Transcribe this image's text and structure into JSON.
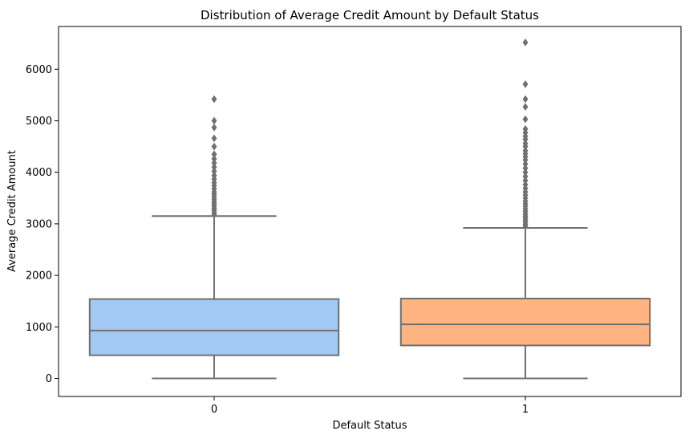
{
  "chart_data": {
    "type": "box",
    "title": "Distribution of Average Credit Amount by Default Status",
    "xlabel": "Default Status",
    "ylabel": "Average Credit Amount",
    "ylim": [
      -350,
      6830
    ],
    "yticks": [
      0,
      1000,
      2000,
      3000,
      4000,
      5000,
      6000
    ],
    "grid": false,
    "legend": "none",
    "categories": [
      "0",
      "1"
    ],
    "boxes": [
      {
        "category": "0",
        "color": "#a1c9f4",
        "whisker_low": 0,
        "q1": 450,
        "median": 930,
        "q3": 1540,
        "whisker_high": 3150,
        "outliers": [
          3180,
          3220,
          3260,
          3300,
          3340,
          3380,
          3420,
          3470,
          3520,
          3570,
          3620,
          3680,
          3740,
          3800,
          3870,
          3940,
          4020,
          4100,
          4180,
          4260,
          4350,
          4500,
          4660,
          4870,
          5000,
          5420
        ]
      },
      {
        "category": "1",
        "color": "#ffb482",
        "whisker_low": 0,
        "q1": 640,
        "median": 1050,
        "q3": 1550,
        "whisker_high": 2920,
        "outliers": [
          2950,
          2990,
          3030,
          3070,
          3110,
          3150,
          3190,
          3240,
          3290,
          3340,
          3390,
          3440,
          3500,
          3560,
          3620,
          3690,
          3760,
          3840,
          3920,
          4000,
          4080,
          4160,
          4240,
          4300,
          4360,
          4420,
          4500,
          4560,
          4640,
          4700,
          4770,
          4840,
          5030,
          5270,
          5420,
          5710,
          6520
        ]
      }
    ]
  }
}
